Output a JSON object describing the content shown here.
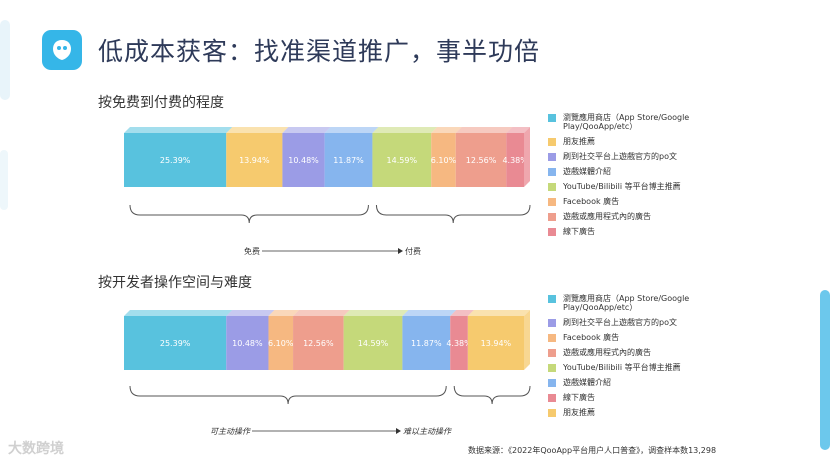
{
  "title": "低成本获客：找准渠道推广，事半功倍",
  "source": "数据来源：《2022年QooApp平台用户人口普查》，调查样本数13,298",
  "brand": "大数跨境",
  "colors": {
    "app_store": "#58c2de",
    "friend": "#f6ca6e",
    "social_official": "#9b9ce6",
    "media": "#86b5ee",
    "youtube": "#c5d97a",
    "facebook": "#f6b881",
    "app_ads": "#ee9e8d",
    "offline": "#e98a93",
    "accent": "#35b6e8"
  },
  "chart_data": [
    {
      "type": "bar",
      "stacked": true,
      "orientation": "horizontal",
      "title": "按免费到付费的程度",
      "brace_left_label": "免费",
      "brace_right_label": "付费",
      "series": [
        {
          "name": "瀏覽應用商店（App Store/Google Play/QooApp/etc）",
          "value": 25.39,
          "label": "25.39%",
          "color_key": "app_store"
        },
        {
          "name": "朋友推薦",
          "value": 13.94,
          "label": "13.94%",
          "color_key": "friend"
        },
        {
          "name": "刷到社交平台上遊戲官方的po文",
          "value": 10.48,
          "label": "10.48%",
          "color_key": "social_official"
        },
        {
          "name": "遊戲媒體介紹",
          "value": 11.87,
          "label": "11.87%",
          "color_key": "media"
        },
        {
          "name": "YouTube/Bilibili 等平台博主推薦",
          "value": 14.59,
          "label": "14.59%",
          "color_key": "youtube"
        },
        {
          "name": "Facebook 廣告",
          "value": 6.1,
          "label": "6.10%",
          "color_key": "facebook"
        },
        {
          "name": "遊戲或應用程式內的廣告",
          "value": 12.56,
          "label": "12.56%",
          "color_key": "app_ads"
        },
        {
          "name": "線下廣告",
          "value": 4.38,
          "label": "4.38%",
          "color_key": "offline"
        }
      ]
    },
    {
      "type": "bar",
      "stacked": true,
      "orientation": "horizontal",
      "title": "按开发者操作空间与难度",
      "brace_left_label": "可主动操作",
      "brace_right_label": "难以主动操作",
      "series": [
        {
          "name": "瀏覽應用商店（App Store/Google Play/QooApp/etc）",
          "value": 25.39,
          "label": "25.39%",
          "color_key": "app_store"
        },
        {
          "name": "刷到社交平台上遊戲官方的po文",
          "value": 10.48,
          "label": "10.48%",
          "color_key": "social_official"
        },
        {
          "name": "Facebook 廣告",
          "value": 6.1,
          "label": "6.10%",
          "color_key": "facebook"
        },
        {
          "name": "遊戲或應用程式內的廣告",
          "value": 12.56,
          "label": "12.56%",
          "color_key": "app_ads"
        },
        {
          "name": "YouTube/Bilibili 等平台博主推薦",
          "value": 14.59,
          "label": "14.59%",
          "color_key": "youtube"
        },
        {
          "name": "遊戲媒體介紹",
          "value": 11.87,
          "label": "11.87%",
          "color_key": "media"
        },
        {
          "name": "線下廣告",
          "value": 4.38,
          "label": "4.38%",
          "color_key": "offline"
        },
        {
          "name": "朋友推薦",
          "value": 13.94,
          "label": "13.94%",
          "color_key": "friend"
        }
      ]
    }
  ]
}
